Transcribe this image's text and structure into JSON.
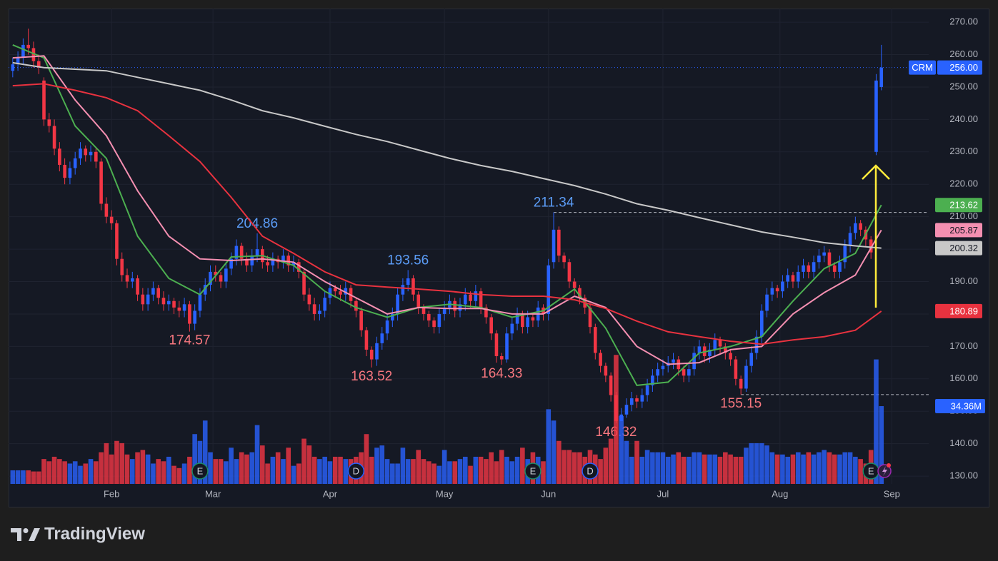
{
  "chart_data": {
    "type": "candlestick",
    "symbol": "CRM",
    "open": [
      255,
      257,
      259,
      263,
      262,
      258,
      252,
      240,
      238,
      231,
      226,
      222,
      225,
      228,
      231,
      229,
      230,
      227,
      214,
      210,
      208,
      197,
      192,
      190,
      191,
      186,
      183,
      186,
      188,
      185,
      183,
      184,
      182,
      181,
      183,
      177,
      181,
      186,
      189,
      193,
      192,
      190,
      194,
      197,
      201,
      197,
      195,
      198,
      200,
      196,
      195,
      197,
      196,
      198,
      195,
      196,
      193,
      186,
      183,
      180,
      181,
      185,
      188,
      187,
      186,
      188,
      184,
      181,
      175,
      169,
      166,
      171,
      174,
      178,
      180,
      186,
      189,
      191,
      186,
      182,
      180,
      178,
      176,
      180,
      182,
      184,
      181,
      183,
      186,
      184,
      187,
      182,
      179,
      174,
      167,
      166,
      174,
      177,
      180,
      176,
      179,
      178,
      182,
      180,
      196,
      206,
      198,
      196,
      190,
      188,
      185,
      182,
      176,
      168,
      164,
      161,
      155,
      147,
      149,
      152,
      154,
      153,
      155,
      158,
      161,
      163,
      164,
      165,
      166,
      163,
      161,
      163,
      168,
      170,
      167,
      169,
      172,
      170,
      168,
      166,
      160,
      157,
      164,
      168,
      173,
      181,
      186,
      188,
      187,
      190,
      192,
      190,
      193,
      195,
      193,
      196,
      198,
      199,
      195,
      193,
      196,
      201,
      205,
      208,
      206,
      203,
      230,
      250
    ],
    "high": [
      259,
      261,
      265,
      268,
      264,
      260,
      253,
      242,
      240,
      233,
      228,
      227,
      230,
      233,
      232,
      232,
      231,
      228,
      216,
      212,
      209,
      199,
      194,
      193,
      192,
      188,
      188,
      190,
      189,
      187,
      186,
      185,
      184,
      185,
      184,
      183,
      188,
      191,
      195,
      195,
      193,
      196,
      199,
      203,
      202,
      199,
      200,
      204.86,
      201,
      198,
      199,
      198,
      200,
      199,
      198,
      197,
      194,
      188,
      185,
      183,
      187,
      190,
      189,
      189,
      190,
      189,
      185,
      182,
      176,
      170,
      173,
      176,
      180,
      182,
      188,
      191,
      193.56,
      192,
      187,
      183,
      181,
      179,
      182,
      184,
      186,
      185,
      185,
      188,
      187,
      189,
      188,
      183,
      180,
      175,
      168,
      176,
      179,
      182,
      181,
      181,
      180,
      184,
      183,
      197,
      211.34,
      207,
      199,
      197,
      191,
      189,
      186,
      183,
      177,
      169,
      165,
      162,
      156,
      151,
      154,
      156,
      155,
      157,
      160,
      163,
      165,
      166,
      167,
      168,
      167,
      164,
      165,
      170,
      172,
      171,
      171,
      174,
      173,
      171,
      169,
      167,
      161,
      166,
      170,
      175,
      183,
      188,
      190,
      189,
      192,
      194,
      193,
      195,
      197,
      196,
      198,
      200,
      201,
      200,
      196,
      198,
      203,
      207,
      210,
      209,
      207,
      204,
      254,
      263
    ],
    "low": [
      253,
      255,
      257,
      260,
      256,
      254,
      238,
      236,
      229,
      224,
      220,
      220,
      223,
      226,
      227,
      227,
      225,
      212,
      208,
      206,
      195,
      190,
      188,
      188,
      184,
      181,
      181,
      184,
      183,
      181,
      181,
      180,
      179,
      179,
      174.57,
      175,
      179,
      184,
      187,
      190,
      188,
      188,
      192,
      195,
      195,
      193,
      193,
      196,
      194,
      193,
      193,
      194,
      194,
      193,
      193,
      191,
      184,
      181,
      178,
      178,
      179,
      183,
      185,
      184,
      184,
      182,
      179,
      173,
      167,
      163.52,
      164,
      169,
      172,
      176,
      178,
      184,
      187,
      184,
      180,
      178,
      176,
      174,
      174,
      178,
      180,
      179,
      179,
      181,
      182,
      182,
      180,
      177,
      172,
      165,
      164.33,
      165,
      172,
      175,
      174,
      174,
      176,
      176,
      178,
      178,
      194,
      196,
      194,
      188,
      186,
      183,
      180,
      174,
      166,
      162,
      159,
      153,
      146.32,
      147,
      148,
      150,
      151,
      151,
      153,
      156,
      159,
      161,
      162,
      163,
      161,
      159,
      159,
      161,
      166,
      165,
      165,
      167,
      168,
      166,
      164,
      158,
      155.15,
      156,
      162,
      166,
      171,
      179,
      184,
      185,
      185,
      188,
      188,
      188,
      191,
      191,
      191,
      194,
      196,
      193,
      191,
      191,
      194,
      199,
      203,
      204,
      201,
      197,
      229,
      249
    ],
    "close": [
      257,
      259,
      263,
      262,
      258,
      256,
      240,
      238,
      231,
      226,
      222,
      225,
      228,
      231,
      229,
      230,
      227,
      214,
      210,
      208,
      197,
      192,
      190,
      191,
      186,
      183,
      186,
      188,
      185,
      183,
      184,
      182,
      181,
      183,
      177,
      181,
      186,
      189,
      193,
      192,
      190,
      194,
      197,
      201,
      197,
      195,
      198,
      200,
      196,
      195,
      197,
      196,
      198,
      195,
      196,
      193,
      186,
      183,
      180,
      181,
      185,
      188,
      187,
      186,
      188,
      184,
      181,
      175,
      169,
      166,
      171,
      174,
      178,
      180,
      186,
      189,
      191,
      186,
      182,
      180,
      178,
      176,
      180,
      182,
      184,
      181,
      183,
      186,
      184,
      187,
      182,
      179,
      174,
      167,
      166,
      174,
      177,
      180,
      176,
      179,
      178,
      182,
      180,
      195,
      206,
      198,
      196,
      190,
      188,
      185,
      182,
      176,
      168,
      164,
      161,
      155,
      147,
      149,
      152,
      154,
      153,
      155,
      158,
      161,
      163,
      164,
      165,
      166,
      163,
      161,
      163,
      168,
      170,
      167,
      169,
      172,
      170,
      168,
      166,
      160,
      157,
      164,
      168,
      173,
      181,
      186,
      188,
      187,
      190,
      192,
      190,
      193,
      195,
      193,
      196,
      198,
      199,
      195,
      193,
      196,
      201,
      205,
      208,
      206,
      203,
      199,
      252,
      256
    ],
    "volume": [
      6,
      6,
      6,
      6,
      5.5,
      5.5,
      11,
      10,
      12,
      11,
      10,
      9,
      10,
      8,
      9,
      11,
      10,
      14,
      18,
      13,
      19,
      18,
      13,
      11,
      14,
      15,
      13,
      9,
      11,
      10,
      12,
      8,
      7,
      9,
      12,
      22,
      19,
      28,
      14,
      11,
      11,
      10,
      16,
      11,
      14,
      13,
      14,
      26,
      17,
      9,
      12,
      14,
      11,
      16,
      8,
      9,
      20,
      17,
      12,
      11,
      12,
      10,
      12,
      12,
      11,
      11,
      12,
      14,
      22,
      12,
      16,
      17,
      11,
      9,
      9,
      16,
      11,
      11,
      15,
      11,
      10,
      9,
      8,
      15,
      10,
      10,
      11,
      12,
      8,
      12,
      12,
      11,
      14,
      10,
      15,
      12,
      10,
      12,
      16,
      11,
      14,
      12,
      10,
      33,
      28,
      19,
      15,
      15,
      14,
      14,
      12,
      15,
      13,
      11,
      16,
      20,
      57,
      30,
      19,
      12,
      19,
      12,
      15,
      14,
      14,
      14,
      12,
      13,
      14,
      12,
      12,
      14,
      14,
      13,
      13,
      13,
      12,
      14,
      13,
      12,
      12,
      16,
      18,
      18,
      18,
      17,
      14,
      13,
      13,
      12,
      13,
      14,
      13,
      14,
      13,
      14,
      15,
      14,
      13,
      13,
      14,
      14,
      12,
      11,
      9,
      15,
      55,
      34.36
    ],
    "up_color": "#2962ff",
    "down_color": "#f23645",
    "xlim": [
      -0.8,
      176.1
    ],
    "xticks": [
      {
        "value": 19,
        "label": "Feb"
      },
      {
        "value": 38.5,
        "label": "Mar"
      },
      {
        "value": 61,
        "label": "Apr"
      },
      {
        "value": 83,
        "label": "May"
      },
      {
        "value": 103,
        "label": "Jun"
      },
      {
        "value": 125,
        "label": "Jul"
      },
      {
        "value": 147.5,
        "label": "Aug"
      },
      {
        "value": 169,
        "label": "Sep"
      }
    ],
    "ylim": [
      127.6,
      274.2
    ],
    "yticks": [
      {
        "value": 130,
        "label": "130.00"
      },
      {
        "value": 140,
        "label": "140.00"
      },
      {
        "value": 150,
        "label": "150.00"
      },
      {
        "value": 160,
        "label": "160.00"
      },
      {
        "value": 170,
        "label": "170.00"
      },
      {
        "value": 180,
        "label": "180.00"
      },
      {
        "value": 190,
        "label": "190.00"
      },
      {
        "value": 200,
        "label": "200.00"
      },
      {
        "value": 210,
        "label": "210.00"
      },
      {
        "value": 220,
        "label": "220.00"
      },
      {
        "value": 230,
        "label": "230.00"
      },
      {
        "value": 240,
        "label": "240.00"
      },
      {
        "value": 250,
        "label": "250.00"
      },
      {
        "value": 260,
        "label": "260.00"
      },
      {
        "value": 270,
        "label": "270.00"
      }
    ],
    "volume_ylim": [
      0,
      210
    ],
    "grid": true,
    "last_price": {
      "value": 256,
      "label": "256.00"
    },
    "volume_last": {
      "value": 34.36,
      "label": "34.36M"
    },
    "ma_x": [
      0,
      6,
      12,
      18,
      24,
      30,
      36,
      42,
      48,
      54,
      60,
      66,
      72,
      78,
      84,
      90,
      96,
      102,
      108,
      114,
      120,
      126,
      132,
      138,
      144,
      150,
      156,
      162,
      167
    ],
    "series": [
      {
        "color": "#4caf50",
        "last_label": "213.62",
        "values": [
          263,
          259,
          238,
          228,
          204,
          191,
          186,
          197.6,
          198,
          195,
          187,
          182,
          179,
          182,
          183,
          182,
          179,
          181,
          187.7,
          175.6,
          158,
          159,
          168,
          170,
          173,
          184,
          194,
          198.7,
          213.62
        ]
      },
      {
        "color": "#f48fb1",
        "last_label": "205.87",
        "values": [
          259,
          259.6,
          246,
          235,
          218,
          204,
          197,
          196.5,
          197,
          196,
          190,
          185,
          180,
          182,
          181.7,
          181.7,
          180,
          180,
          185.5,
          182,
          170,
          164.5,
          165,
          169,
          170,
          180,
          186.6,
          192,
          205.87
        ]
      },
      {
        "color": "#e8323f",
        "last_label": "180.89",
        "values": [
          250.4,
          251,
          249,
          246.7,
          242.7,
          235,
          227,
          216,
          204,
          198.7,
          193,
          189,
          188.3,
          187.7,
          187,
          186,
          185.5,
          185.5,
          184.4,
          181.7,
          177.8,
          174.5,
          173,
          171.6,
          170.7,
          172,
          173,
          175,
          180.89
        ]
      },
      {
        "color": "#c8c8c8",
        "last_label": "200.32",
        "values": [
          257.5,
          256,
          255.5,
          255,
          253,
          251,
          249,
          246,
          242.7,
          240.5,
          237.9,
          235.4,
          233.2,
          230.6,
          228,
          225.8,
          224,
          221.8,
          219.6,
          217,
          214,
          212,
          209.7,
          207.5,
          205.3,
          203.7,
          202,
          201,
          200.32
        ]
      }
    ],
    "high_color": "#5b9cf6",
    "low_color": "#f7777f",
    "annotations": [
      {
        "label": "204.86",
        "value": 204.86,
        "index": 47,
        "kind": "high"
      },
      {
        "label": "193.56",
        "value": 193.56,
        "index": 76,
        "kind": "high"
      },
      {
        "label": "211.34",
        "value": 211.34,
        "index": 104,
        "kind": "high",
        "line": true
      },
      {
        "label": "174.57",
        "value": 174.57,
        "index": 34,
        "kind": "low"
      },
      {
        "label": "163.52",
        "value": 163.52,
        "index": 69,
        "kind": "low"
      },
      {
        "label": "164.33",
        "value": 164.33,
        "index": 94,
        "kind": "low"
      },
      {
        "label": "146.32",
        "value": 146.32,
        "index": 116,
        "kind": "low"
      },
      {
        "label": "155.15",
        "value": 155.15,
        "index": 140,
        "kind": "low",
        "line": true
      }
    ],
    "events": [
      {
        "label": "E",
        "index": 36,
        "color": "#1b8a67"
      },
      {
        "label": "D",
        "index": 66,
        "color": "#2962ff"
      },
      {
        "label": "E",
        "index": 100,
        "color": "#1b8a67"
      },
      {
        "label": "D",
        "index": 111,
        "color": "#2962ff"
      },
      {
        "label": "E",
        "index": 165,
        "color": "#1b8a67"
      }
    ]
  },
  "watermark": "TradingView"
}
